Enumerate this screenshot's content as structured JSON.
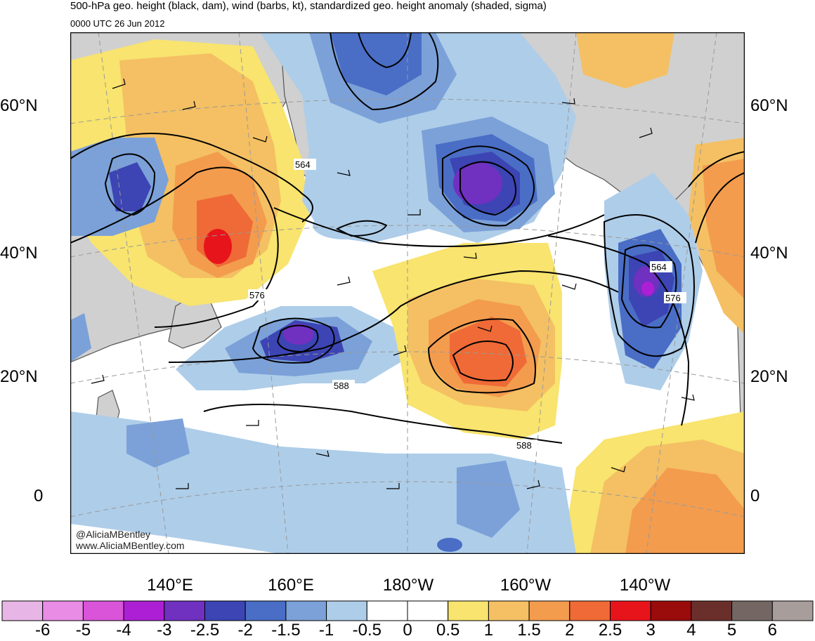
{
  "header": {
    "title": "500-hPa geo. height (black, dam), wind (barbs, kt), standardized geo. height anomaly (shaded, sigma)",
    "valid_time": "0000 UTC 26 Jun 2012"
  },
  "credits": {
    "handle": "@AliciaMBentley",
    "website": "www.AliciaMBentley.com"
  },
  "axes": {
    "lat_left": [
      "60°N",
      "40°N",
      "20°N",
      "0"
    ],
    "lat_right": [
      "60°N",
      "40°N",
      "20°N",
      "0"
    ],
    "lon_bottom": [
      "140°E",
      "160°E",
      "180°W",
      "160°W",
      "140°W"
    ]
  },
  "contour_labels": [
    "564",
    "576",
    "588",
    "588",
    "564",
    "576"
  ],
  "colorbar": {
    "labels": [
      "-6",
      "-5",
      "-4",
      "-3",
      "-2.5",
      "-2",
      "-1.5",
      "-1",
      "-0.5",
      "0",
      "0.5",
      "1",
      "1.5",
      "2",
      "2.5",
      "3",
      "4",
      "5",
      "6"
    ],
    "colors": [
      "#e8b6e6",
      "#e98ce6",
      "#d954d9",
      "#ad1fd4",
      "#7030c0",
      "#3c45b3",
      "#4a6ec6",
      "#7ba1d8",
      "#aecde9",
      "#ffffff",
      "#ffffff",
      "#f8e46e",
      "#f4c063",
      "#f39c4e",
      "#ef6a36",
      "#e8141b",
      "#9a0b0b",
      "#6b2f2b",
      "#746763",
      "#a79e9c"
    ]
  },
  "colors": {
    "land": "#d0d0d0",
    "coastline": "#555555",
    "contour": "#000000",
    "gridline": "#999999"
  }
}
